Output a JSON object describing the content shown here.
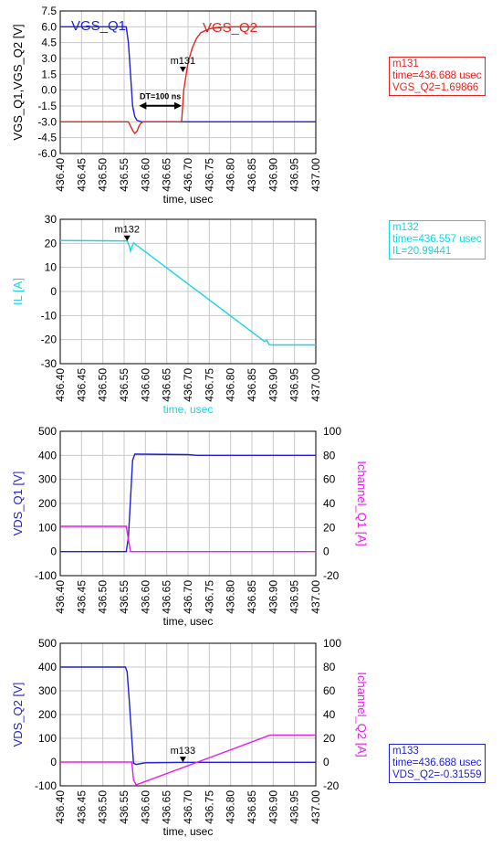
{
  "colors": {
    "blue": "#1f1fd6",
    "red": "#e8231f",
    "cyan": "#16d6e0",
    "magenta": "#e61fe6",
    "axis": "#000000",
    "grid": "#c8c8c8"
  },
  "chart_data": [
    {
      "type": "line",
      "xlabel": "time, usec",
      "ylabel": "VGS_Q1,VGS_Q2 [V]",
      "xlim": [
        436.4,
        437.0
      ],
      "ylim": [
        -6.0,
        7.5
      ],
      "xticks": [
        "436.40",
        "436.45",
        "436.50",
        "436.55",
        "436.60",
        "436.65",
        "436.70",
        "436.75",
        "436.80",
        "436.85",
        "436.90",
        "436.95",
        "437.00"
      ],
      "yticks": [
        "7.5",
        "6.0",
        "4.5",
        "3.0",
        "1.5",
        "0.0",
        "-1.5",
        "-3.0",
        "-4.5",
        "-6.0"
      ],
      "grid": true,
      "series": [
        {
          "name": "VGS_Q1",
          "color": "blue",
          "x": [
            436.4,
            436.555,
            436.56,
            436.565,
            436.57,
            436.575,
            436.58,
            436.59,
            436.6,
            436.7,
            437.0
          ],
          "y": [
            6.0,
            6.0,
            4.5,
            1.5,
            -1.5,
            -2.5,
            -2.85,
            -3.0,
            -3.0,
            -3.0,
            -3.0
          ]
        },
        {
          "name": "VGS_Q2",
          "color": "red",
          "x": [
            436.4,
            436.56,
            436.57,
            436.575,
            436.58,
            436.585,
            436.59,
            436.595,
            436.6,
            436.685,
            436.69,
            436.7,
            436.71,
            436.72,
            436.73,
            436.75,
            436.77,
            436.8,
            437.0
          ],
          "y": [
            -3.0,
            -3.0,
            -3.8,
            -4.1,
            -3.9,
            -3.4,
            -3.1,
            -3.0,
            -3.0,
            -3.0,
            0.0,
            2.6,
            4.0,
            4.9,
            5.45,
            5.8,
            5.95,
            6.0,
            6.0
          ]
        }
      ],
      "annotations": [
        {
          "text": "DT=100 ns",
          "x_from": 436.585,
          "x_to": 436.685,
          "y": -1.3
        },
        {
          "marker": "m131",
          "x": 436.688,
          "y": 1.69866
        }
      ],
      "marker_readout": {
        "name": "m131",
        "lines": [
          "m131",
          "time=436.688 usec",
          "VGS_Q2=1.69866"
        ],
        "color": "red"
      }
    },
    {
      "type": "line",
      "xlabel": "time, usec",
      "ylabel": "IL [A]",
      "xlim": [
        436.4,
        437.0
      ],
      "ylim": [
        -30,
        30
      ],
      "xticks": [
        "436.40",
        "436.45",
        "436.50",
        "436.55",
        "436.60",
        "436.65",
        "436.70",
        "436.75",
        "436.80",
        "436.85",
        "436.90",
        "436.95",
        "437.00"
      ],
      "yticks": [
        "30",
        "20",
        "10",
        "0",
        "-10",
        "-20",
        "-30"
      ],
      "grid": true,
      "series": [
        {
          "name": "IL",
          "color": "cyan",
          "x": [
            436.4,
            436.557,
            436.562,
            436.565,
            436.568,
            436.572,
            436.88,
            436.885,
            436.89,
            436.895,
            437.0
          ],
          "y": [
            21.2,
            21.0,
            19.0,
            16.8,
            18.5,
            20.2,
            -20.8,
            -20.2,
            -22.0,
            -22.2,
            -22.2
          ]
        }
      ],
      "annotations": [
        {
          "marker": "m132",
          "x": 436.557,
          "y": 20.99441
        }
      ],
      "marker_readout": {
        "name": "m132",
        "lines": [
          "m132",
          "time=436.557 usec",
          "IL=20.99441"
        ],
        "color": "cyan"
      }
    },
    {
      "type": "line",
      "xlabel": "time, usec",
      "ylabel": "VDS_Q1 [V]",
      "y2label": "Ichannel_Q1 [A]",
      "xlim": [
        436.4,
        437.0
      ],
      "ylim": [
        -100,
        500
      ],
      "y2lim": [
        -20,
        100
      ],
      "xticks": [
        "436.40",
        "436.45",
        "436.50",
        "436.55",
        "436.60",
        "436.65",
        "436.70",
        "436.75",
        "436.80",
        "436.85",
        "436.90",
        "436.95",
        "437.00"
      ],
      "yticks": [
        "500",
        "400",
        "300",
        "200",
        "100",
        "0",
        "-100"
      ],
      "y2ticks": [
        "100",
        "80",
        "60",
        "40",
        "20",
        "0",
        "-20"
      ],
      "grid": true,
      "series": [
        {
          "name": "VDS_Q1",
          "color": "blue",
          "axis": "left",
          "x": [
            436.4,
            436.555,
            436.56,
            436.565,
            436.57,
            436.575,
            436.58,
            436.7,
            436.72,
            437.0
          ],
          "y": [
            0,
            0,
            60,
            220,
            380,
            405,
            405,
            403,
            400,
            400
          ]
        },
        {
          "name": "Ichannel_Q1",
          "color": "magenta",
          "axis": "right",
          "x": [
            436.4,
            436.555,
            436.56,
            436.565,
            436.57,
            437.0
          ],
          "y": [
            21,
            21,
            10,
            0,
            0,
            0
          ]
        }
      ]
    },
    {
      "type": "line",
      "xlabel": "time, usec",
      "ylabel": "VDS_Q2 [V]",
      "y2label": "Ichannel_Q2 [A]",
      "xlim": [
        436.4,
        437.0
      ],
      "ylim": [
        -100,
        500
      ],
      "y2lim": [
        -20,
        100
      ],
      "xticks": [
        "436.40",
        "436.45",
        "436.50",
        "436.55",
        "436.60",
        "436.65",
        "436.70",
        "436.75",
        "436.80",
        "436.85",
        "436.90",
        "436.95",
        "437.00"
      ],
      "yticks": [
        "500",
        "400",
        "300",
        "200",
        "100",
        "0",
        "-100"
      ],
      "y2ticks": [
        "100",
        "80",
        "60",
        "40",
        "20",
        "0",
        "-20"
      ],
      "grid": true,
      "series": [
        {
          "name": "VDS_Q2",
          "color": "blue",
          "axis": "left",
          "x": [
            436.4,
            436.553,
            436.557,
            436.562,
            436.568,
            436.572,
            436.578,
            436.6,
            436.7,
            437.0
          ],
          "y": [
            400,
            400,
            380,
            260,
            100,
            -5,
            -10,
            -3,
            -1,
            -1
          ]
        },
        {
          "name": "Ichannel_Q2",
          "color": "magenta",
          "axis": "right",
          "x": [
            436.4,
            436.568,
            436.572,
            436.578,
            436.58,
            436.88,
            436.89,
            436.895,
            437.0
          ],
          "y": [
            0,
            0,
            -15,
            -19,
            -19,
            21,
            22.5,
            22.8,
            22.8
          ]
        }
      ],
      "annotations": [
        {
          "marker": "m133",
          "x": 436.688,
          "y": -0.31559
        }
      ],
      "marker_readout": {
        "name": "m133",
        "lines": [
          "m133",
          "time=436.688 usec",
          "VDS_Q2=-0.31559"
        ],
        "color": "blue"
      }
    }
  ]
}
